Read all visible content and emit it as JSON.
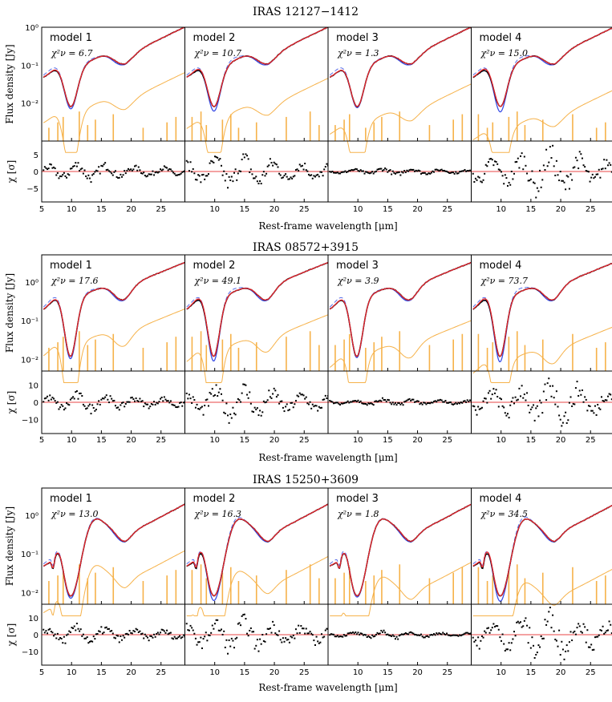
{
  "chart_data": {
    "type": "line",
    "x_range_um": [
      5,
      29
    ],
    "x_ticks": [
      5,
      10,
      15,
      20,
      25
    ],
    "xlabel": "Rest-frame wavelength [μm]",
    "ylabel_top": "Flux density [Jy]",
    "ylabel_bottom": "χ [σ]",
    "colors": {
      "data": "#000000",
      "fit_red": "#e8262b",
      "fit_blue": "#3b4fe6",
      "dashed_blue": "#5a6ee8",
      "components": "#f6b24a",
      "zero_line": "#e84545"
    },
    "groups": [
      {
        "title": "IRAS 12127−1412",
        "flux_range": [
          0.001,
          1
        ],
        "flux_ticks": [
          "10⁻²",
          "10⁻¹",
          "10⁰"
        ],
        "flux_tick_values": [
          0.01,
          0.1,
          1
        ],
        "chi_range": [
          -9,
          9
        ],
        "chi_ticks": [
          5,
          0,
          -5
        ],
        "panels": [
          {
            "label": "model 1",
            "chi2": "6.7"
          },
          {
            "label": "model 2",
            "chi2": "10.7"
          },
          {
            "label": "model 3",
            "chi2": "1.3"
          },
          {
            "label": "model 4",
            "chi2": "15.0"
          }
        ]
      },
      {
        "title": "IRAS 08572+3915",
        "flux_range": [
          0.005,
          5
        ],
        "flux_ticks": [
          "10⁻²",
          "10⁻¹",
          "10⁰"
        ],
        "flux_tick_values": [
          0.01,
          0.1,
          1
        ],
        "chi_range": [
          -18,
          18
        ],
        "chi_ticks": [
          10,
          0,
          -10
        ],
        "panels": [
          {
            "label": "model 1",
            "chi2": "17.6"
          },
          {
            "label": "model 2",
            "chi2": "49.1"
          },
          {
            "label": "model 3",
            "chi2": "3.9"
          },
          {
            "label": "model 4",
            "chi2": "73.7"
          }
        ]
      },
      {
        "title": "IRAS 15250+3609",
        "flux_range": [
          0.005,
          5
        ],
        "flux_ticks": [
          "10⁻²",
          "10⁻¹",
          "10⁰"
        ],
        "flux_tick_values": [
          0.01,
          0.1,
          1
        ],
        "chi_range": [
          -18,
          18
        ],
        "chi_ticks": [
          10,
          0,
          -10
        ],
        "panels": [
          {
            "label": "model 1",
            "chi2": "13.0"
          },
          {
            "label": "model 2",
            "chi2": "16.3"
          },
          {
            "label": "model 3",
            "chi2": "1.8"
          },
          {
            "label": "model 4",
            "chi2": "34.5"
          }
        ]
      }
    ]
  }
}
